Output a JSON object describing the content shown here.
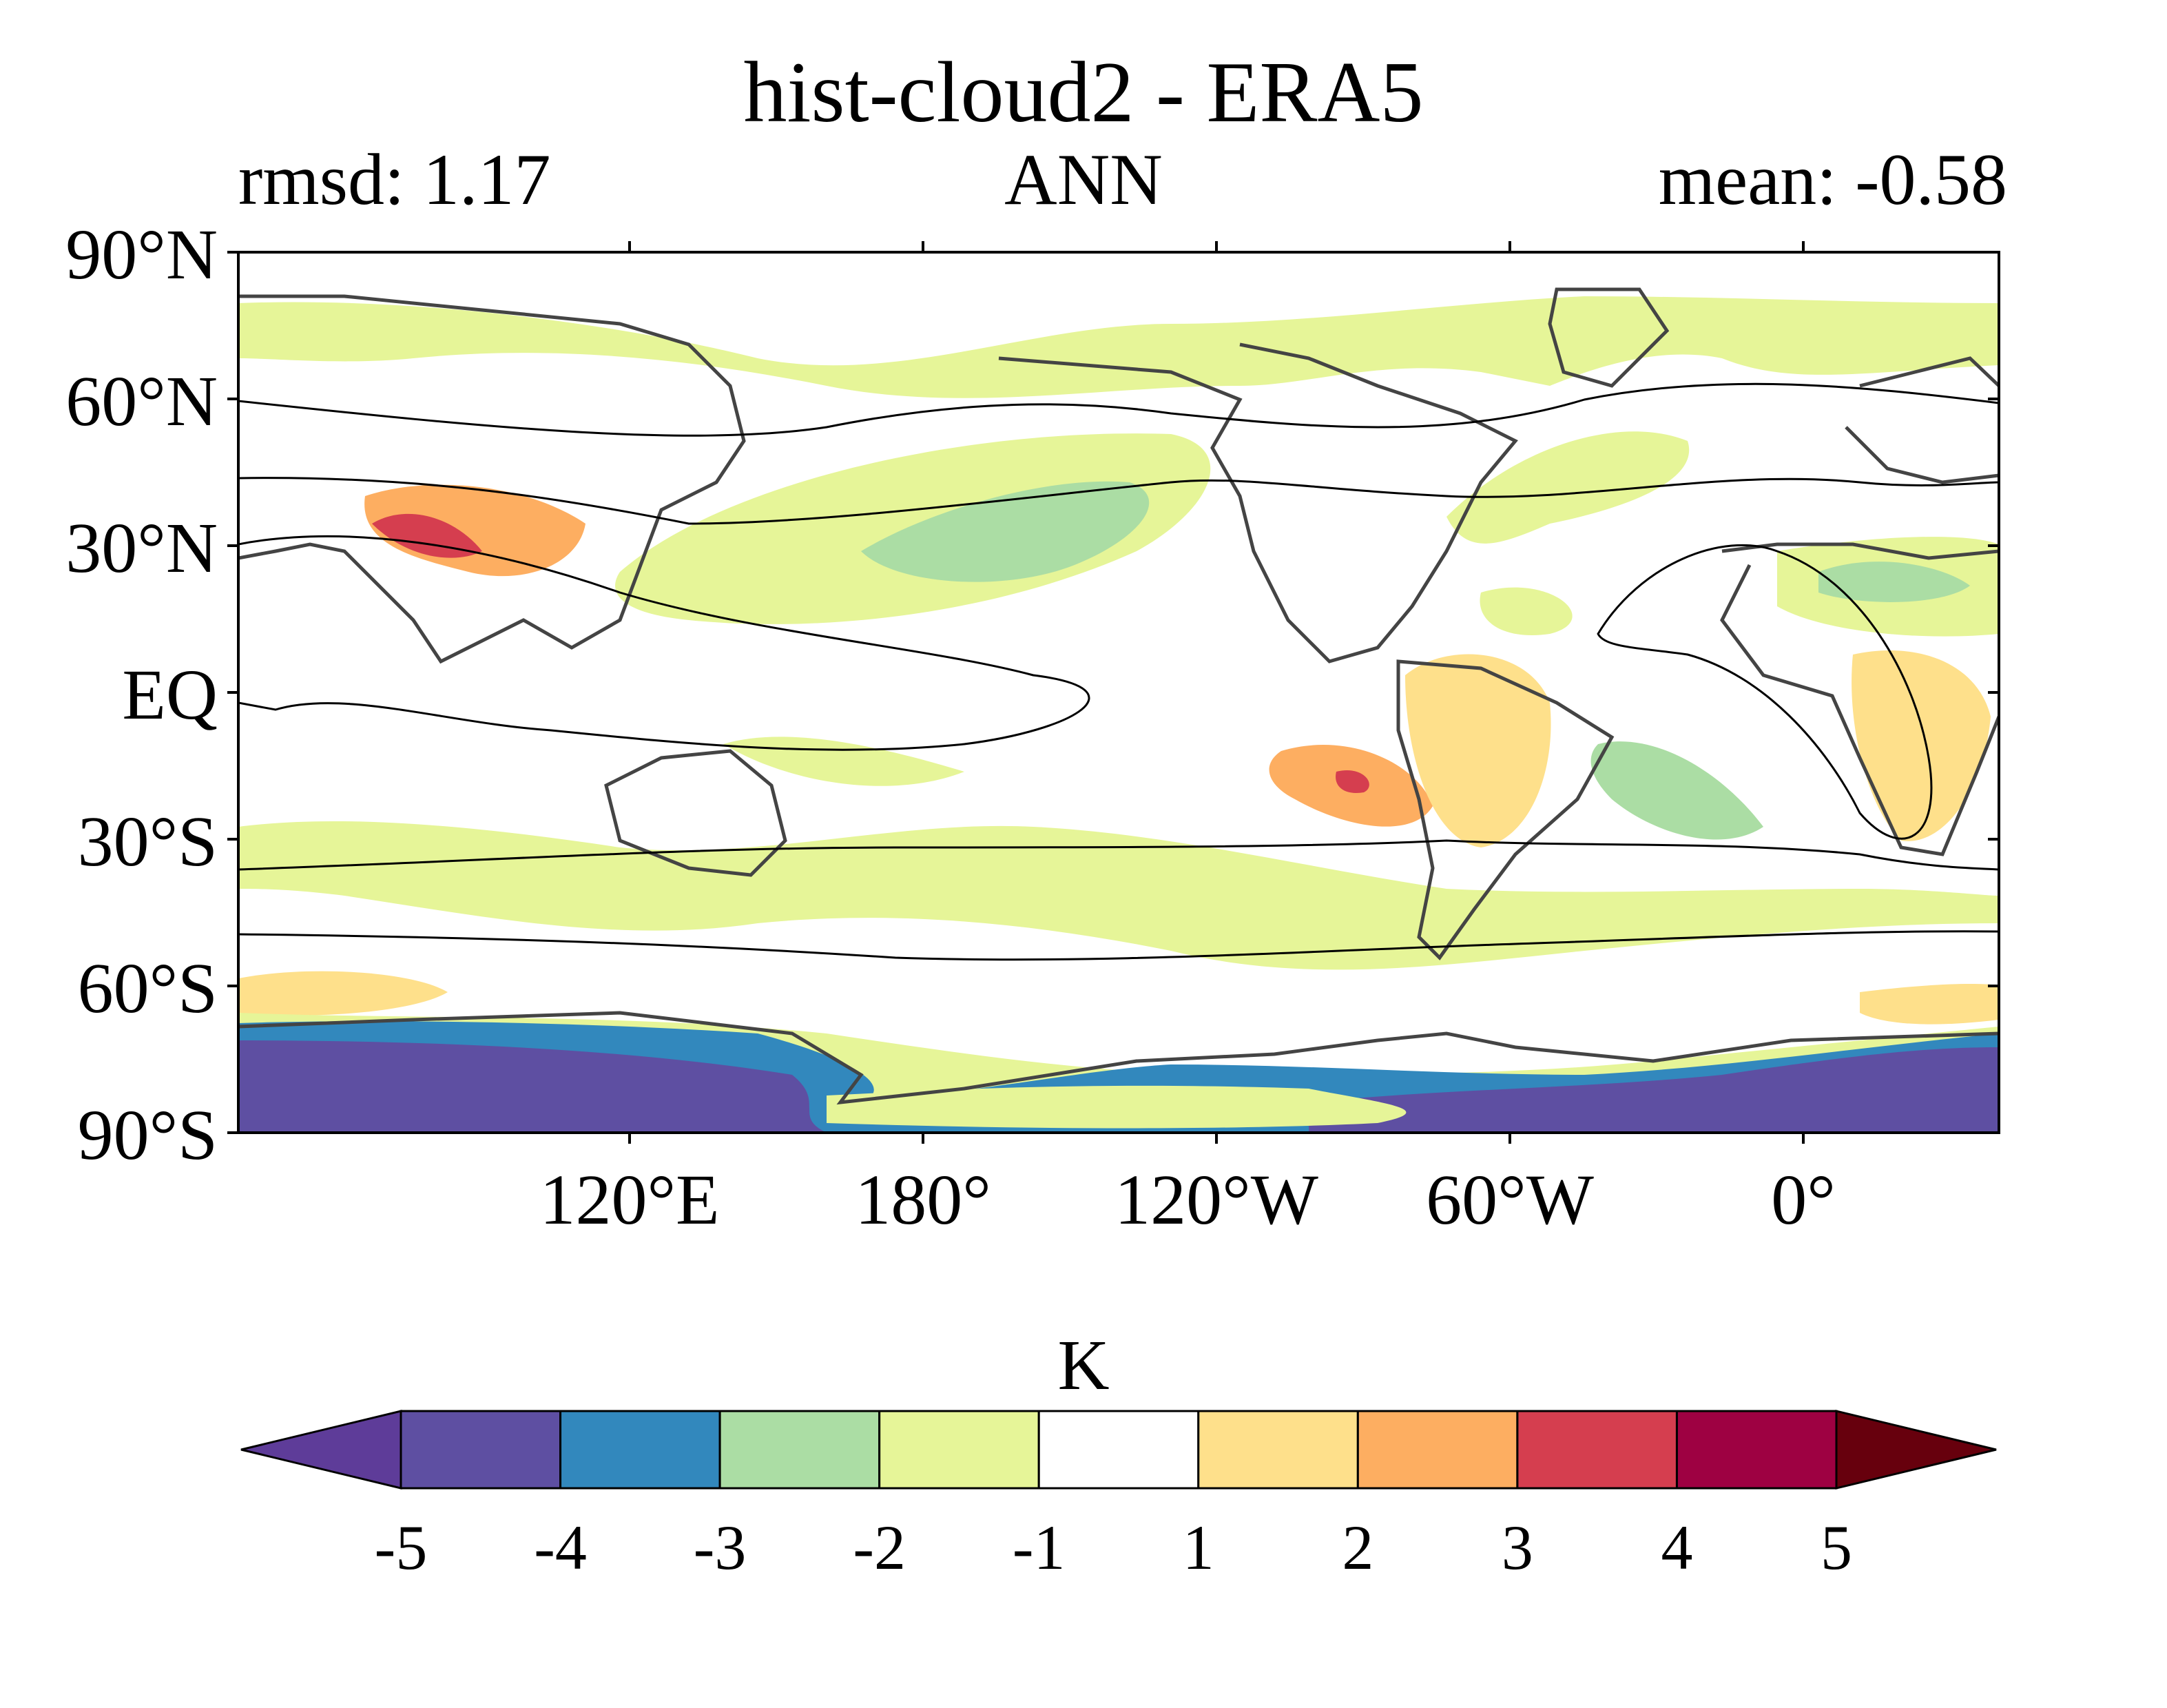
{
  "title": "hist-cloud2 - ERA5",
  "stat_left": "rmsd: 1.17",
  "season": "ANN",
  "stat_right": "mean: -0.58",
  "lat_labels": [
    "90°N",
    "60°N",
    "30°N",
    "EQ",
    "30°S",
    "60°S",
    "90°S"
  ],
  "lon_labels": [
    "120°E",
    "180°",
    "120°W",
    "60°W",
    "0°"
  ],
  "colorbar": {
    "units": "K",
    "levels": [
      "-5",
      "-4",
      "-3",
      "-2",
      "-1",
      "1",
      "2",
      "3",
      "4",
      "5"
    ],
    "colors": [
      "#5e3c99",
      "#5e4fa2",
      "#3288bd",
      "#abdda4",
      "#e6f598",
      "#ffffff",
      "#fee08b",
      "#fdae61",
      "#d53e4f",
      "#9e0142",
      "#67000d"
    ]
  }
}
